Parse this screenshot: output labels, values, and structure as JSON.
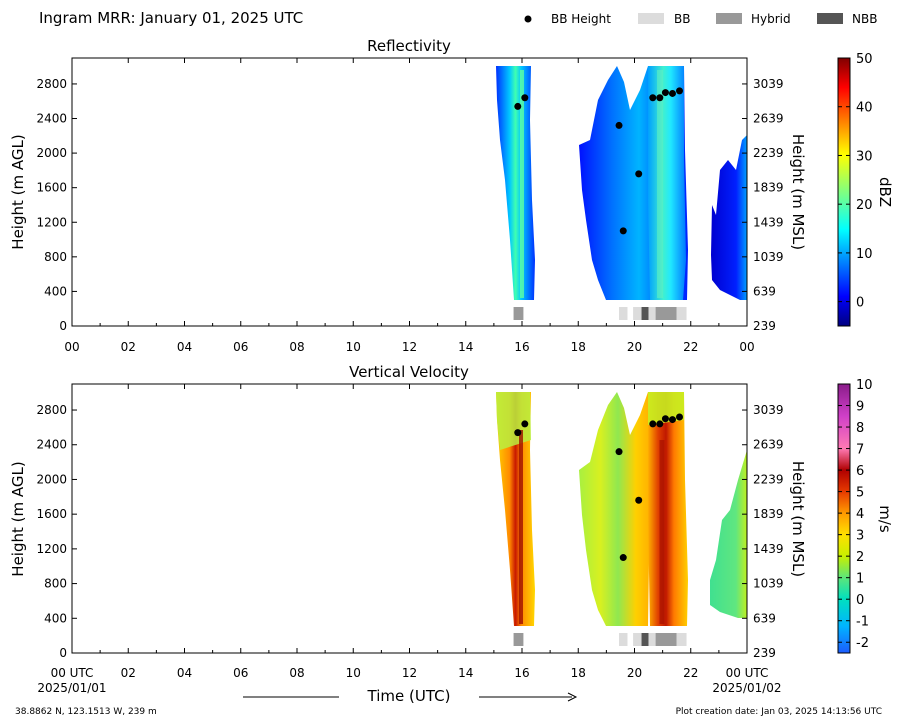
{
  "header": {
    "title": "Ingram MRR:  January 01, 2025 UTC"
  },
  "legend": {
    "bb_height": "BB Height",
    "bb": "BB",
    "hybrid": "Hybrid",
    "nbb": "NBB",
    "colors": {
      "bb": "#dcdcdc",
      "hybrid": "#999999",
      "nbb": "#555555",
      "bb_height": "#000000"
    }
  },
  "footer": {
    "location": "38.8862 N, 123.1513 W, 239 m",
    "creation": "Plot creation date: Jan 03, 2025 14:13:56 UTC",
    "time_label": "Time (UTC)",
    "start_date": "2025/01/01",
    "end_date": "2025/01/02"
  },
  "chart_data": [
    {
      "type": "heatmap",
      "title": "Reflectivity",
      "ylabel": "Height (m AGL)",
      "y2label": "Height (m MSL)",
      "colorbar_label": "dBZ",
      "colorbar_ticks": [
        "50",
        "40",
        "30",
        "20",
        "10",
        "0"
      ],
      "colorbar_range": [
        -5,
        50
      ],
      "xlim": [
        0,
        24
      ],
      "ylim": [
        0,
        3100
      ],
      "x_ticks": [
        "00",
        "02",
        "04",
        "06",
        "08",
        "10",
        "12",
        "14",
        "16",
        "18",
        "20",
        "22",
        "00"
      ],
      "y_ticks": [
        "0",
        "400",
        "800",
        "1200",
        "1600",
        "2000",
        "2400",
        "2800"
      ],
      "y2_ticks": [
        "239",
        "639",
        "1039",
        "1439",
        "1839",
        "2239",
        "2639",
        "3039"
      ],
      "bb_height_points": [
        [
          15.85,
          2540
        ],
        [
          16.1,
          2640
        ],
        [
          19.45,
          2320
        ],
        [
          19.6,
          1100
        ],
        [
          20.15,
          1760
        ],
        [
          20.65,
          2640
        ],
        [
          20.9,
          2640
        ],
        [
          21.1,
          2700
        ],
        [
          21.35,
          2690
        ],
        [
          21.6,
          2720
        ]
      ],
      "bb_class_segments": [
        {
          "start": 15.7,
          "end": 16.05,
          "class": "Hybrid"
        },
        {
          "start": 19.45,
          "end": 19.75,
          "class": "BB"
        },
        {
          "start": 19.95,
          "end": 20.25,
          "class": "BB"
        },
        {
          "start": 20.25,
          "end": 20.5,
          "class": "NBB"
        },
        {
          "start": 20.5,
          "end": 20.75,
          "class": "BB"
        },
        {
          "start": 20.75,
          "end": 21.5,
          "class": "Hybrid"
        },
        {
          "start": 21.5,
          "end": 21.85,
          "class": "BB"
        }
      ]
    },
    {
      "type": "heatmap",
      "title": "Vertical Velocity",
      "ylabel": "Height (m AGL)",
      "y2label": "Height (m MSL)",
      "colorbar_label": "m/s",
      "colorbar_ticks": [
        "10",
        "9",
        "8",
        "7",
        "6",
        "5",
        "4",
        "3",
        "2",
        "1",
        "0",
        "-1",
        "-2"
      ],
      "colorbar_range": [
        -2.5,
        10
      ],
      "xlim": [
        0,
        24
      ],
      "ylim": [
        0,
        3100
      ],
      "x_ticks": [
        "00 UTC",
        "02",
        "04",
        "06",
        "08",
        "10",
        "12",
        "14",
        "16",
        "18",
        "20",
        "22",
        "00 UTC"
      ],
      "y_ticks": [
        "0",
        "400",
        "800",
        "1200",
        "1600",
        "2000",
        "2400",
        "2800"
      ],
      "y2_ticks": [
        "239",
        "639",
        "1039",
        "1439",
        "1839",
        "2239",
        "2639",
        "3039"
      ],
      "bb_height_points": [
        [
          15.85,
          2540
        ],
        [
          16.1,
          2640
        ],
        [
          19.45,
          2320
        ],
        [
          19.6,
          1100
        ],
        [
          20.15,
          1760
        ],
        [
          20.65,
          2640
        ],
        [
          20.9,
          2640
        ],
        [
          21.1,
          2700
        ],
        [
          21.35,
          2690
        ],
        [
          21.6,
          2720
        ]
      ],
      "bb_class_segments": [
        {
          "start": 15.7,
          "end": 16.05,
          "class": "Hybrid"
        },
        {
          "start": 19.45,
          "end": 19.75,
          "class": "BB"
        },
        {
          "start": 19.95,
          "end": 20.25,
          "class": "BB"
        },
        {
          "start": 20.25,
          "end": 20.5,
          "class": "NBB"
        },
        {
          "start": 20.5,
          "end": 20.75,
          "class": "BB"
        },
        {
          "start": 20.75,
          "end": 21.5,
          "class": "Hybrid"
        },
        {
          "start": 21.5,
          "end": 21.85,
          "class": "BB"
        }
      ]
    }
  ]
}
